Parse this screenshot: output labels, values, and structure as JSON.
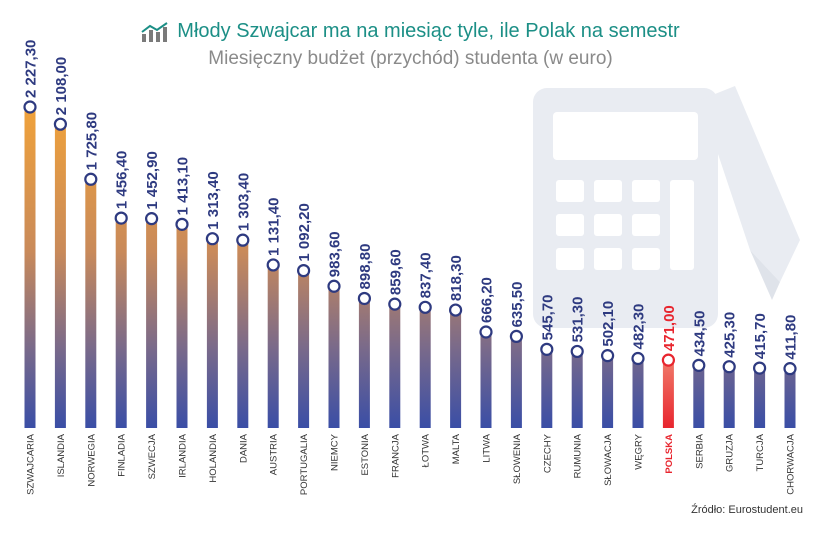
{
  "header": {
    "title": "Młody Szwajcar ma na miesiąc tyle, ile Polak na semestr",
    "subtitle": "Miesięczny budżet (przychód) studenta (w euro)",
    "logo_icon": "chart-trend-icon"
  },
  "source": "Źródło: Eurostudent.eu",
  "colors": {
    "title": "#1c8f86",
    "bar_top": "#f0a23a",
    "bar_bottom": "#3a4ea6",
    "label": "#2e3a80",
    "highlight": "#e8252e",
    "background_art": "#e9ecf2"
  },
  "chart_data": {
    "type": "bar",
    "title": "Młody Szwajcar ma na miesiąc tyle, ile Polak na semestr",
    "subtitle": "Miesięczny budżet (przychód) studenta (w euro)",
    "xlabel": "",
    "ylabel": "",
    "ylim": [
      0,
      2227.3
    ],
    "grid": false,
    "legend": "none",
    "highlight_category": "POLSKA",
    "categories": [
      "SZWAJCARIA",
      "ISLANDIA",
      "NORWEGIA",
      "FINLADIA",
      "SZWECJA",
      "IRLANDIA",
      "HOLANDIA",
      "DANIA",
      "AUSTRIA",
      "PORTUGALIA",
      "NIEMCY",
      "ESTONIA",
      "FRANCJA",
      "ŁOTWA",
      "MALTA",
      "LITWA",
      "SŁOWENIA",
      "CZECHY",
      "RUMUNIA",
      "SŁOWACJA",
      "WĘGRY",
      "POLSKA",
      "SERBIA",
      "GRUZJA",
      "TURCJA",
      "CHORWACJA"
    ],
    "values": [
      2227.3,
      2108.0,
      1725.8,
      1456.4,
      1452.9,
      1413.1,
      1313.4,
      1303.4,
      1131.4,
      1092.2,
      983.6,
      898.8,
      859.6,
      837.4,
      818.3,
      666.2,
      635.5,
      545.7,
      531.3,
      502.1,
      482.3,
      471.0,
      434.5,
      425.3,
      415.7,
      411.8
    ],
    "value_labels": [
      "2 227,30",
      "2 108,00",
      "1 725,80",
      "1 456,40",
      "1 452,90",
      "1 413,10",
      "1 313,40",
      "1 303,40",
      "1 131,40",
      "1 092,20",
      "983,60",
      "898,80",
      "859,60",
      "837,40",
      "818,30",
      "666,20",
      "635,50",
      "545,70",
      "531,30",
      "502,10",
      "482,30",
      "471,00",
      "434,50",
      "425,30",
      "415,70",
      "411,80"
    ]
  }
}
